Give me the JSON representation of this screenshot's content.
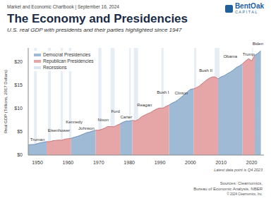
{
  "chart_data": {
    "type": "area",
    "title": "The Economy and Presidencies",
    "subtitle": "U.S. real GDP with presidents and their parties highlighted since 1947",
    "y_label": "Real GDP (Trillions, 2017 Dollars)",
    "x": [
      1947,
      1948,
      1949,
      1950,
      1951,
      1952,
      1953,
      1954,
      1955,
      1956,
      1957,
      1958,
      1959,
      1960,
      1961,
      1962,
      1963,
      1964,
      1965,
      1966,
      1967,
      1968,
      1969,
      1970,
      1971,
      1972,
      1973,
      1974,
      1975,
      1976,
      1977,
      1978,
      1979,
      1980,
      1981,
      1982,
      1983,
      1984,
      1985,
      1986,
      1987,
      1988,
      1989,
      1990,
      1991,
      1992,
      1993,
      1994,
      1995,
      1996,
      1997,
      1998,
      1999,
      2000,
      2001,
      2002,
      2003,
      2004,
      2005,
      2006,
      2007,
      2008,
      2009,
      2010,
      2011,
      2012,
      2013,
      2014,
      2015,
      2016,
      2017,
      2018,
      2019,
      2020,
      2021,
      2022,
      2023
    ],
    "values": [
      2.18,
      2.27,
      2.26,
      2.46,
      2.65,
      2.76,
      2.89,
      2.87,
      3.08,
      3.14,
      3.21,
      3.19,
      3.42,
      3.51,
      3.6,
      3.83,
      4.0,
      4.23,
      4.5,
      4.8,
      4.93,
      5.17,
      5.33,
      5.33,
      5.52,
      5.8,
      6.13,
      6.1,
      6.08,
      6.41,
      6.7,
      7.07,
      7.3,
      7.28,
      7.46,
      7.32,
      7.66,
      8.22,
      8.56,
      8.86,
      9.16,
      9.55,
      9.91,
      10.1,
      10.09,
      10.45,
      10.74,
      11.15,
      11.46,
      11.89,
      12.42,
      12.98,
      13.58,
      14.1,
      14.23,
      14.47,
      14.87,
      15.45,
      15.99,
      16.43,
      16.76,
      16.78,
      16.35,
      16.79,
      17.05,
      17.44,
      17.81,
      18.26,
      18.8,
      19.14,
      19.61,
      20.19,
      20.69,
      20.23,
      21.41,
      21.82,
      22.38
    ],
    "series": [
      {
        "name": "Democrat Presidencies",
        "color": "#9fbad4",
        "presidents": [
          {
            "name": "Truman",
            "start": 1947,
            "end": 1953
          },
          {
            "name": "Kennedy",
            "start": 1961,
            "end": 1963
          },
          {
            "name": "Johnson",
            "start": 1963,
            "end": 1969
          },
          {
            "name": "Carter",
            "start": 1977,
            "end": 1981
          },
          {
            "name": "Clinton",
            "start": 1993,
            "end": 2001
          },
          {
            "name": "Obama",
            "start": 2009,
            "end": 2017
          },
          {
            "name": "Biden",
            "start": 2021,
            "end": 2023
          }
        ]
      },
      {
        "name": "Republican Presidencies",
        "color": "#e6a6a8",
        "presidents": [
          {
            "name": "Eisenhower",
            "start": 1953,
            "end": 1961
          },
          {
            "name": "Nixon",
            "start": 1969,
            "end": 1974
          },
          {
            "name": "Ford",
            "start": 1974,
            "end": 1977
          },
          {
            "name": "Reagan",
            "start": 1981,
            "end": 1989
          },
          {
            "name": "Bush I",
            "start": 1989,
            "end": 1993
          },
          {
            "name": "Bush II",
            "start": 2001,
            "end": 2009
          },
          {
            "name": "Trump",
            "start": 2017,
            "end": 2021
          }
        ]
      }
    ],
    "recessions": {
      "name": "Recessions",
      "color": "#dbe5ef",
      "periods": [
        [
          1948.9,
          1949.8
        ],
        [
          1953.5,
          1954.4
        ],
        [
          1957.6,
          1958.3
        ],
        [
          1960.3,
          1961.1
        ],
        [
          1969.9,
          1970.9
        ],
        [
          1973.9,
          1975.2
        ],
        [
          1980.0,
          1980.5
        ],
        [
          1981.5,
          1982.9
        ],
        [
          1990.5,
          1991.2
        ],
        [
          2001.2,
          2001.9
        ],
        [
          2007.9,
          2009.5
        ],
        [
          2020.1,
          2020.4
        ]
      ]
    },
    "xlim": [
      1947,
      2024
    ],
    "xticks": [
      1950,
      1960,
      1970,
      1980,
      1990,
      2000,
      2010,
      2020
    ],
    "ylim": [
      0,
      23
    ],
    "yticks": [
      {
        "value": 0,
        "label": "$0"
      },
      {
        "value": 5,
        "label": "$5"
      },
      {
        "value": 10,
        "label": "$10"
      },
      {
        "value": 15,
        "label": "$15"
      },
      {
        "value": 20,
        "label": "$20"
      }
    ],
    "grid": false,
    "legend": "upper left"
  },
  "page": {
    "header": "Market and Economic Chartbook | September 16, 2024",
    "logo": {
      "name": "BentOak",
      "tagline": "CAPITAL"
    },
    "note": "Latest data point is Q4 2023",
    "sources": [
      "Sources: Clearnomics,",
      "Bureau of Economic Analysis, NBER"
    ],
    "copyright": "© 2024 Clearnomics, Inc."
  }
}
